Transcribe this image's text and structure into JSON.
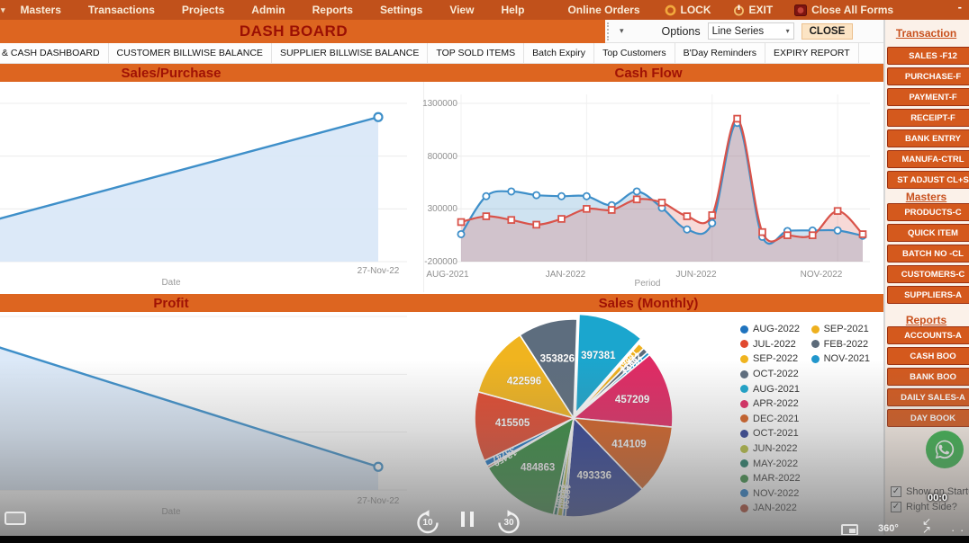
{
  "menubar": {
    "items": [
      "Masters",
      "Transactions",
      "Projects",
      "Admin",
      "Reports",
      "Settings",
      "View",
      "Help",
      "Online Orders"
    ],
    "lock_label": "LOCK",
    "exit_label": "EXIT",
    "close_all_label": "Close All Forms",
    "minimize": "-"
  },
  "titlebar": {
    "title": "DASH BOARD",
    "options_label": "Options",
    "series_select_value": "Line Series",
    "close_label": "CLOSE"
  },
  "tabs": [
    "& CASH DASHBOARD",
    "CUSTOMER BILLWISE BALANCE",
    "SUPPLIER BILLWISE BALANCE",
    "TOP SOLD ITEMS",
    "Batch Expiry",
    "Top Customers",
    "B'Day Reminders",
    "EXPIRY REPORT"
  ],
  "chart_data": [
    {
      "id": "sales_purchase",
      "type": "area",
      "title": "Sales/Purchase",
      "xlabel": "Date",
      "x": [
        "",
        "27-Nov-22"
      ],
      "values": [
        190000,
        1170000
      ],
      "ylim": [
        -200000,
        1300000
      ],
      "line_color": "#3e8fc9",
      "fill_color": "#d8e7f7",
      "grid": true
    },
    {
      "id": "cash_flow",
      "type": "line",
      "title": "Cash Flow",
      "xlabel": "Period",
      "categories": [
        "AUG-2021",
        "SEP-2021",
        "OCT-2021",
        "NOV-2021",
        "DEC-2021",
        "JAN-2022",
        "FEB-2022",
        "MAR-2022",
        "APR-2022",
        "MAY-2022",
        "JUN-2022",
        "JUL-2022",
        "AUG-2022",
        "SEP-2022",
        "OCT-2022",
        "NOV-2022",
        "DEC-2022"
      ],
      "xticks": [
        "AUG-2021",
        "JAN-2022",
        "JUN-2022",
        "NOV-2022"
      ],
      "xtick_index": [
        0,
        5,
        10,
        15
      ],
      "yticks": [
        1300000,
        800000,
        300000,
        -200000
      ],
      "ylim": [
        -200000,
        1300000
      ],
      "grid": true,
      "series": [
        {
          "color": "#3e8fc9",
          "marker": "circle",
          "values": [
            60000,
            420000,
            465000,
            430000,
            420000,
            420000,
            335000,
            465000,
            310000,
            105000,
            165000,
            1115000,
            35000,
            90000,
            95000,
            95000,
            45000
          ]
        },
        {
          "color": "#d9534a",
          "marker": "square",
          "values": [
            175000,
            230000,
            195000,
            150000,
            205000,
            300000,
            290000,
            390000,
            360000,
            230000,
            240000,
            1155000,
            80000,
            50000,
            50000,
            280000,
            60000
          ]
        }
      ]
    },
    {
      "id": "profit",
      "type": "area",
      "title": "Profit",
      "xlabel": "Date",
      "x": [
        "",
        "27-Nov-22"
      ],
      "values": [
        1050000,
        0
      ],
      "ylim": [
        -200000,
        1300000
      ],
      "line_color": "#3e8fc9",
      "fill_color": "#d8e7f7",
      "grid": true
    },
    {
      "id": "sales_monthly",
      "type": "pie",
      "title": "Sales (Monthly)",
      "slices": [
        {
          "label": "AUG-2021",
          "value": 397381,
          "color": "#1ba6ce",
          "explode": true
        },
        {
          "label": "SEP-2021",
          "value": 39441,
          "color": "#eeb01e"
        },
        {
          "label": "FEB-2022",
          "value": 31662,
          "color": "#5c6b7a"
        },
        {
          "label": "NOV-2021",
          "value": 19741,
          "color": "#2196cc"
        },
        {
          "label": "APR-2022",
          "value": 457209,
          "color": "#e02a64"
        },
        {
          "label": "DEC-2021",
          "value": 414109,
          "color": "#d55f20"
        },
        {
          "label": "OCT-2021",
          "value": 493336,
          "color": "#2d3f94"
        },
        {
          "label": "AUG-2022",
          "value": 18230,
          "color": "#1f73be"
        },
        {
          "label": "JUN-2022",
          "value": 29940,
          "color": "#b6bf3d"
        },
        {
          "label": "MAY-2022",
          "value": 23340,
          "color": "#1b7a63"
        },
        {
          "label": "MAR-2022",
          "value": 484863,
          "color": "#338a3e"
        },
        {
          "label": "JAN-2022",
          "value": 12450,
          "color": "#b03a21"
        },
        {
          "label": "NOV-2022",
          "value": 35747,
          "color": "#1976c8"
        },
        {
          "label": "JUL-2022",
          "value": 415505,
          "color": "#e1492f"
        },
        {
          "label": "SEP-2022",
          "value": 422596,
          "color": "#f0b41f"
        },
        {
          "label": "OCT-2022",
          "value": 353826,
          "color": "#5d6d7e"
        }
      ],
      "legend": {
        "col1": [
          "AUG-2022",
          "JUL-2022",
          "SEP-2022",
          "OCT-2022",
          "AUG-2021",
          "APR-2022",
          "DEC-2021",
          "OCT-2021",
          "JUN-2022",
          "MAY-2022",
          "MAR-2022",
          "NOV-2022",
          "JAN-2022"
        ],
        "col2": [
          "SEP-2021",
          "FEB-2022",
          "NOV-2021"
        ]
      }
    }
  ],
  "sidebar": {
    "header_transactions": "Transaction",
    "transactions": [
      "SALES -F12",
      "PURCHASE-F",
      "PAYMENT-F",
      "RECEIPT-F",
      "BANK ENTRY",
      "MANUFA-CTRL",
      "ST ADJUST CL+S"
    ],
    "header_masters": "Masters",
    "masters": [
      "PRODUCTS-C",
      "QUICK ITEM",
      "BATCH NO -CL",
      "CUSTOMERS-C",
      "SUPPLIERS-A"
    ],
    "header_reports": "Reports",
    "reports": [
      "ACCOUNTS-A",
      "CASH BOO",
      "BANK BOO",
      "DAILY SALES-A",
      "DAY BOOK"
    ],
    "show_on_startup": "Show on Startup",
    "right_side": "Right Side?",
    "check_glyph": "✓"
  },
  "player": {
    "rewind": "10",
    "forward": "30",
    "rotate": "360°",
    "timestamp": "00:0",
    "dots": "· · ·",
    "collapse_top": "↙",
    "collapse_bottom": "↗"
  }
}
